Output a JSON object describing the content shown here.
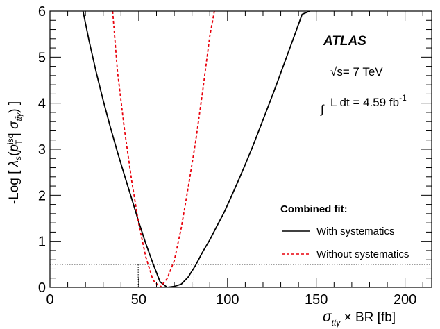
{
  "chart_data": {
    "type": "line",
    "title": "",
    "xlabel": "σ_{tt̄γ} × BR [fb]",
    "ylabel": "-Log [ λ_s(p_T^iso | σ_{tt̄γ}) ]",
    "xlim": [
      0,
      215
    ],
    "ylim": [
      0,
      6
    ],
    "x_ticks": [
      0,
      50,
      100,
      150,
      200
    ],
    "y_ticks": [
      0,
      1,
      2,
      3,
      4,
      5,
      6
    ],
    "grid": false,
    "legend_position": "bottom-right",
    "legend_title": "Combined fit:",
    "series": [
      {
        "name": "With systematics",
        "style": "solid",
        "color": "#000000",
        "x": [
          18.6,
          22,
          26,
          30,
          34,
          38,
          42,
          46,
          50,
          54,
          58,
          62,
          66,
          70,
          74,
          78,
          82,
          86,
          90,
          94,
          98,
          102,
          106,
          110,
          114,
          118,
          122,
          126,
          130,
          134,
          138,
          142,
          146.3
        ],
        "y": [
          6.0,
          5.36,
          4.68,
          4.06,
          3.48,
          2.94,
          2.43,
          1.93,
          1.42,
          0.95,
          0.52,
          0.12,
          0.0,
          0.02,
          0.07,
          0.23,
          0.48,
          0.77,
          1.03,
          1.33,
          1.62,
          1.96,
          2.31,
          2.67,
          3.04,
          3.44,
          3.84,
          4.24,
          4.66,
          5.08,
          5.5,
          5.93,
          6.0
        ]
      },
      {
        "name": "Without systematics",
        "style": "dashed",
        "color": "#e8000b",
        "x": [
          35.3,
          38,
          42,
          46,
          50,
          54,
          58,
          62,
          66,
          70,
          74,
          78,
          82,
          86,
          90,
          92.6
        ],
        "y": [
          6.0,
          4.7,
          3.42,
          2.32,
          1.38,
          0.66,
          0.16,
          0.0,
          0.19,
          0.58,
          1.3,
          2.2,
          3.16,
          4.26,
          5.45,
          6.0
        ]
      }
    ],
    "reference_lines": [
      {
        "orientation": "horizontal",
        "y": 0.5,
        "style": "dotted"
      },
      {
        "orientation": "vertical",
        "x": 49.7,
        "y_to": 0.5,
        "style": "dotted"
      },
      {
        "orientation": "vertical",
        "x": 81.1,
        "y_to": 0.5,
        "style": "dotted"
      }
    ],
    "annotations": {
      "experiment": "ATLAS",
      "energy": "√s= 7 TeV",
      "luminosity": "L dt = 4.59 fb"
    }
  }
}
